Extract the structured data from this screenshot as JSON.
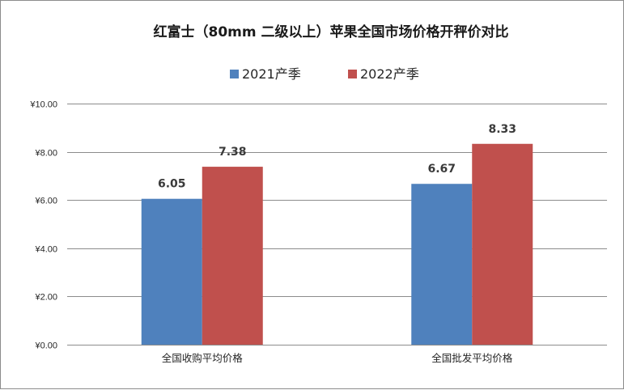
{
  "chart_data": {
    "type": "bar",
    "title": "红富士（80mm 二级以上）苹果全国市场价格开秤价对比",
    "categories": [
      "全国收购平均价格",
      "全国批发平均价格"
    ],
    "series": [
      {
        "name": "2021产季",
        "values": [
          6.05,
          6.67
        ],
        "labels": [
          "6.05",
          "6.67"
        ],
        "color": "#4f81bd"
      },
      {
        "name": "2022产季",
        "values": [
          7.38,
          8.33
        ],
        "labels": [
          "7.38",
          "8.33"
        ],
        "color": "#c0504d"
      }
    ],
    "ylim": [
      0,
      10
    ],
    "yticks": [
      0,
      2,
      4,
      6,
      8,
      10
    ],
    "ytick_labels": [
      "¥0.00",
      "¥2.00",
      "¥4.00",
      "¥6.00",
      "¥8.00",
      "¥10.00"
    ],
    "grid": true,
    "legend_position": "top-center",
    "xlabel": "",
    "ylabel": ""
  }
}
